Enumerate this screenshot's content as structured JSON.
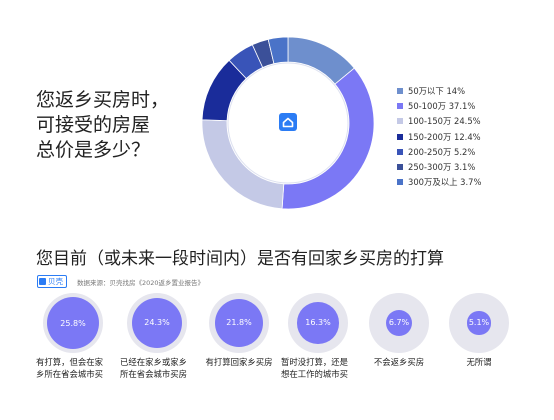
{
  "question_1": "您返乡买房时，\n可接受的房屋\n总价是多少？",
  "question_2": "您目前（或未来一段时间内）是否有回家乡买房的打算",
  "brand_name": "贝壳",
  "source_text": "数据来源：贝壳找房《2020返乡置业报告》",
  "chart_data": [
    {
      "type": "pie",
      "variant": "donut",
      "legend_position": "right",
      "categories": [
        "50万以下",
        "50-100万",
        "100-150万",
        "150-200万",
        "200-250万",
        "250-300万",
        "300万及以上"
      ],
      "values": [
        14,
        37.1,
        24.5,
        12.4,
        5.2,
        3.1,
        3.7
      ],
      "legend_labels": [
        "50万以下 14%",
        "50-100万 37.1%",
        "100-150万 24.5%",
        "150-200万 12.4%",
        "200-250万 5.2%",
        "250-300万 3.1%",
        "300万及以上 3.7%"
      ],
      "colors": [
        "#6e8fcd",
        "#7b78f5",
        "#c4c9e6",
        "#1a2c9a",
        "#3954b8",
        "#3b5099",
        "#4a73c8"
      ]
    },
    {
      "type": "bar",
      "variant": "proportional-circles",
      "categories": [
        "有打算，但会在家乡所在省会城市买",
        "已经在家乡或家乡所在省会城市买房",
        "有打算回家乡买房",
        "暂时没打算，还是想在工作的城市买",
        "不会返乡买房",
        "无所谓"
      ],
      "captions": [
        "有打算，但会在家\n乡所在省会城市买",
        "已经在家乡或家乡\n所在省会城市买房",
        "有打算回家乡买房",
        "暂时没打算，还是\n想在工作的城市买",
        "不会返乡买房",
        "无所谓"
      ],
      "values": [
        25.8,
        24.3,
        21.8,
        16.3,
        6.7,
        5.1
      ],
      "value_labels": [
        "25.8%",
        "24.3%",
        "21.8%",
        "16.3%",
        "6.7%",
        "5.1%"
      ],
      "color": "#7b78f5"
    }
  ],
  "icons": {
    "center": "house-icon",
    "brand": "beike-logo"
  }
}
